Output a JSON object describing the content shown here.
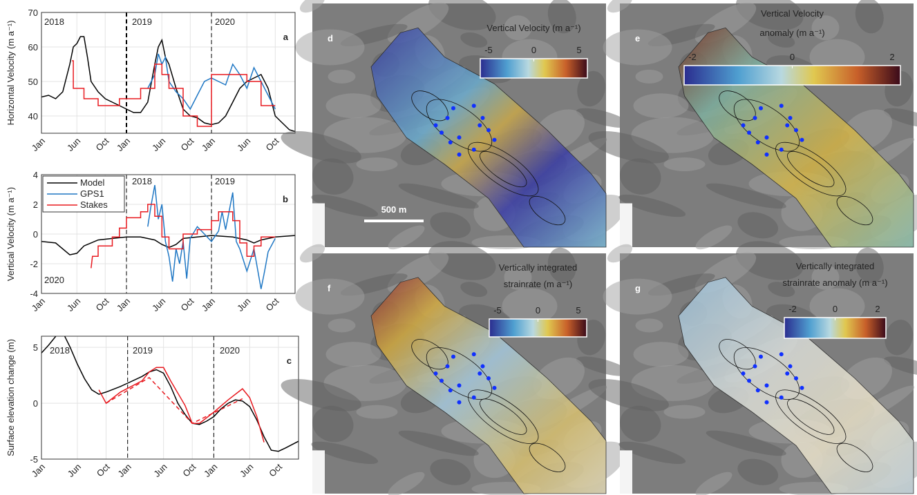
{
  "chart_data": [
    {
      "type": "line",
      "panel": "a",
      "ylabel": "Horizontal Velocity (m a⁻¹)",
      "xlim": [
        0,
        35.8
      ],
      "xticks": [
        {
          "value": 0,
          "label": "Jan"
        },
        {
          "value": 5,
          "label": "Jun"
        },
        {
          "value": 9,
          "label": "Oct"
        },
        {
          "value": 12,
          "label": "Jan"
        },
        {
          "value": 17,
          "label": "Jun"
        },
        {
          "value": 21,
          "label": "Oct"
        },
        {
          "value": 24,
          "label": "Jan"
        },
        {
          "value": 29,
          "label": "Jun"
        },
        {
          "value": 33,
          "label": "Oct"
        }
      ],
      "ylim": [
        35,
        70
      ],
      "yticks": [
        40,
        50,
        60,
        70
      ],
      "grid": true,
      "annotations": [
        "2018",
        "2019",
        "2020"
      ],
      "vlines": [
        12,
        24
      ],
      "series": [
        {
          "color": "#000000",
          "x": [
            0,
            1,
            2,
            3,
            4,
            4.5,
            5,
            5.5,
            6,
            6.5,
            7,
            8,
            9,
            10,
            11,
            12,
            13,
            14,
            15,
            16,
            16.5,
            17,
            17.5,
            18,
            19,
            20,
            21,
            22,
            23,
            24,
            25,
            26,
            27,
            28,
            29,
            30,
            31,
            32,
            33,
            34,
            35,
            35.8
          ],
          "values": [
            45.5,
            46,
            45,
            47,
            55,
            60,
            61,
            63,
            63,
            57,
            50,
            47,
            45,
            44,
            43,
            42,
            41,
            41,
            44,
            55,
            60,
            62,
            57,
            55,
            48,
            42,
            40,
            39.5,
            38,
            37.5,
            38,
            40,
            44,
            48,
            50,
            51,
            52,
            48,
            40,
            38,
            36,
            35.5
          ]
        },
        {
          "color": "#1f77c4",
          "x": [
            15,
            16,
            16.5,
            17,
            17.5,
            18,
            19,
            20,
            21,
            22,
            23,
            24,
            25,
            26,
            27,
            28,
            29,
            30,
            31,
            32,
            33
          ],
          "values": [
            48,
            52,
            58,
            55,
            57,
            50,
            47,
            45,
            42,
            46,
            50,
            51,
            50,
            49,
            55,
            52,
            48,
            54,
            50,
            46,
            42
          ]
        },
        {
          "color": "#e8191f",
          "x": [
            4.3,
            4.5,
            4.5,
            6,
            6,
            8,
            8,
            11,
            11,
            14,
            14,
            16,
            16,
            17,
            17,
            18,
            18,
            20,
            20,
            22,
            22,
            24,
            24,
            29,
            29,
            31,
            31,
            33
          ],
          "values": [
            56,
            56,
            48,
            48,
            45,
            45,
            43,
            43,
            45,
            45,
            48,
            48,
            55,
            55,
            52,
            52,
            48,
            48,
            40,
            40,
            37,
            37,
            52,
            52,
            50,
            50,
            43,
            43
          ]
        }
      ]
    },
    {
      "type": "line",
      "panel": "b",
      "ylabel": "Vertical Velocity (m a⁻¹)",
      "xlim": [
        0,
        35.8
      ],
      "xticks": [
        {
          "value": 0,
          "label": "Jan"
        },
        {
          "value": 5,
          "label": "Jun"
        },
        {
          "value": 9,
          "label": "Oct"
        },
        {
          "value": 12,
          "label": "Jan"
        },
        {
          "value": 17,
          "label": "Jun"
        },
        {
          "value": 21,
          "label": "Oct"
        },
        {
          "value": 24,
          "label": "Jan"
        },
        {
          "value": 29,
          "label": "Jun"
        },
        {
          "value": 33,
          "label": "Oct"
        }
      ],
      "ylim": [
        -4,
        4
      ],
      "yticks": [
        -4,
        -2,
        0,
        2,
        4
      ],
      "grid": true,
      "annotations": [
        "2018",
        "2019",
        "2020"
      ],
      "vlines": [
        12,
        24
      ],
      "legend": "upper left",
      "series": [
        {
          "name": "Model",
          "color": "#000000",
          "x": [
            0,
            2,
            4,
            5,
            6,
            8,
            10,
            12,
            14,
            16,
            17,
            18,
            19,
            20,
            22,
            24,
            27,
            29,
            30,
            31,
            33,
            35.8
          ],
          "values": [
            -0.5,
            -0.6,
            -1.4,
            -1.3,
            -0.8,
            -0.4,
            -0.3,
            -0.2,
            -0.2,
            -0.4,
            -0.7,
            -0.9,
            -0.7,
            -0.3,
            -0.2,
            -0.1,
            -0.2,
            -0.4,
            -0.6,
            -0.4,
            -0.2,
            -0.1
          ]
        },
        {
          "name": "GPS1",
          "color": "#1f77c4",
          "x": [
            15,
            15.5,
            16,
            16.5,
            17,
            17.5,
            18,
            18.5,
            19,
            19.5,
            20,
            20.5,
            21,
            22,
            23,
            24,
            25,
            25.5,
            26,
            27,
            27.5,
            28,
            29,
            30,
            31,
            31.5,
            32,
            33
          ],
          "values": [
            0.5,
            2,
            3.3,
            1,
            2,
            -0.5,
            -1.5,
            -3.2,
            -1,
            -2,
            -0.5,
            -3,
            -0.3,
            0.5,
            0,
            -0.5,
            0.2,
            1.5,
            0.3,
            2.8,
            -0.5,
            -1,
            -2.5,
            -1,
            -3.7,
            -2.5,
            -1.2,
            -0.3
          ]
        },
        {
          "name": "Stakes",
          "color": "#e8191f",
          "x": [
            7,
            7.2,
            8,
            8,
            10,
            10,
            11,
            11,
            12,
            12,
            14,
            14,
            15,
            15,
            16,
            16,
            17,
            17,
            18,
            18,
            20,
            20,
            22,
            22,
            24,
            24,
            25,
            25,
            27,
            27,
            28,
            28,
            29,
            29,
            30,
            30,
            31,
            31,
            33
          ],
          "values": [
            -2.3,
            -1.5,
            -1.5,
            -0.8,
            -0.8,
            -0.2,
            -0.2,
            0.4,
            0.4,
            1.1,
            1.1,
            1.5,
            1.5,
            2,
            2,
            1.2,
            1.2,
            -0.2,
            -0.2,
            -1,
            -1,
            0,
            0,
            0.3,
            0.3,
            0.9,
            0.9,
            1.5,
            1.5,
            0.9,
            0.9,
            -0.6,
            -0.6,
            -1.5,
            -1.5,
            -0.8,
            -0.8,
            -0.2,
            -0.2
          ]
        }
      ]
    },
    {
      "type": "line",
      "panel": "c",
      "ylabel": "Surface elevation change (m)",
      "xlim": [
        0,
        35.8
      ],
      "xticks": [
        {
          "value": 0,
          "label": "Jan"
        },
        {
          "value": 5,
          "label": "Jun"
        },
        {
          "value": 9,
          "label": "Oct"
        },
        {
          "value": 12,
          "label": "Jan"
        },
        {
          "value": 17,
          "label": "Jun"
        },
        {
          "value": 21,
          "label": "Oct"
        },
        {
          "value": 24,
          "label": "Jan"
        },
        {
          "value": 29,
          "label": "Jun"
        },
        {
          "value": 33,
          "label": "Oct"
        }
      ],
      "ylim": [
        -5,
        6
      ],
      "yticks": [
        -5,
        0,
        5
      ],
      "grid": true,
      "annotations": [
        "2018",
        "2019",
        "2020"
      ],
      "vlines": [
        12,
        24
      ],
      "series": [
        {
          "color": "#000000",
          "x": [
            0,
            1,
            2,
            3,
            4,
            5,
            6,
            7,
            8,
            9,
            11,
            12,
            14,
            15,
            16,
            17,
            18,
            19,
            20,
            21,
            22,
            23,
            24,
            25,
            26,
            27,
            28,
            29,
            30,
            31,
            32,
            33,
            34,
            35.8
          ],
          "values": [
            4.5,
            5.2,
            6,
            6.3,
            5,
            3.5,
            2.2,
            1.2,
            0.8,
            1,
            1.5,
            1.8,
            2.4,
            2.8,
            3,
            2.7,
            1.5,
            0,
            -1,
            -1.8,
            -1.9,
            -1.6,
            -1.2,
            -0.5,
            0,
            0.3,
            0.2,
            -0.3,
            -1.5,
            -3,
            -4.2,
            -4.3,
            -4,
            -3.4
          ]
        },
        {
          "color": "#e8191f",
          "x": [
            8,
            9,
            11,
            14,
            15,
            16,
            17,
            18,
            20,
            21,
            22,
            24,
            26,
            28,
            29,
            30,
            31
          ],
          "values": [
            1.2,
            0,
            1,
            2,
            2.8,
            3.2,
            3.2,
            2,
            -0.2,
            -1.8,
            -1.8,
            -0.8,
            0.3,
            1.3,
            0.5,
            -1.2,
            -3.5
          ]
        },
        {
          "color": "#e8191f",
          "dash": true,
          "x": [
            9,
            15,
            21,
            28
          ],
          "values": [
            0,
            2.3,
            -1.8,
            0.4
          ]
        }
      ]
    }
  ],
  "maps": [
    {
      "panel": "d",
      "title": [
        "Vertical Velocity (m a⁻¹)"
      ],
      "cbar_lim": [
        -5,
        5
      ],
      "cbar_ticks": [
        -5,
        0,
        5
      ],
      "scale_bar": "500 m"
    },
    {
      "panel": "e",
      "title": [
        "Vertical Velocity",
        "anomaly (m a⁻¹)"
      ],
      "cbar_lim": [
        -2,
        2
      ],
      "cbar_ticks": [
        -2,
        0,
        2
      ]
    },
    {
      "panel": "f",
      "title": [
        "Vertically integrated",
        "strainrate (m a⁻¹)"
      ],
      "cbar_lim": [
        -5,
        5
      ],
      "cbar_ticks": [
        -5,
        0,
        5
      ]
    },
    {
      "panel": "g",
      "title": [
        "Vertically integrated",
        "strainrate anomaly (m a⁻¹)"
      ],
      "cbar_lim": [
        -2,
        2
      ],
      "cbar_ticks": [
        -2,
        0,
        2
      ]
    }
  ]
}
